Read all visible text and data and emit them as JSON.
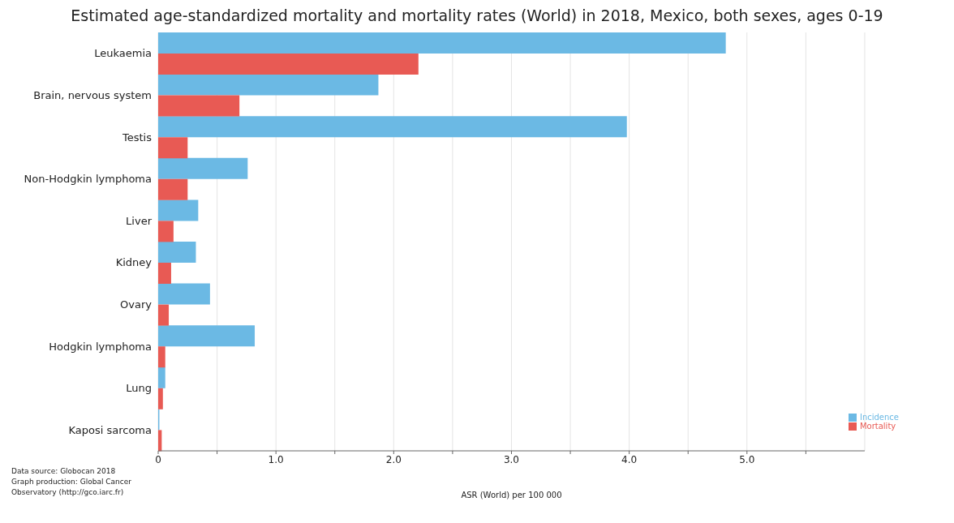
{
  "chart_data": {
    "type": "bar",
    "orientation": "horizontal",
    "title": "Estimated age-standardized mortality and mortality rates (World) in 2018, Mexico, both sexes, ages 0-19",
    "xlabel": "ASR (World) per 100 000",
    "categories": [
      "Leukaemia",
      "Brain, nervous system",
      "Testis",
      "Non-Hodgkin lymphoma",
      "Liver",
      "Kidney",
      "Ovary",
      "Hodgkin lymphoma",
      "Lung",
      "Kaposi sarcoma"
    ],
    "series": [
      {
        "name": "Incidence",
        "color": "#6bb9e4",
        "values": [
          4.82,
          1.87,
          3.98,
          0.76,
          0.34,
          0.32,
          0.44,
          0.82,
          0.06,
          0.01
        ]
      },
      {
        "name": "Mortality",
        "color": "#e85a54",
        "values": [
          2.21,
          0.69,
          0.25,
          0.25,
          0.13,
          0.11,
          0.09,
          0.06,
          0.04,
          0.03
        ]
      }
    ],
    "xlim": [
      0,
      6
    ],
    "xticks": [
      0,
      {
        "value": 0.5,
        "label": null
      },
      {
        "value": 1,
        "label": "1.0"
      },
      {
        "value": 1.5,
        "label": null
      },
      {
        "value": 2,
        "label": "2.0"
      },
      {
        "value": 2.5,
        "label": null
      },
      {
        "value": 3,
        "label": "3.0"
      },
      {
        "value": 3.5,
        "label": null
      },
      {
        "value": 4,
        "label": "4.0"
      },
      {
        "value": 4.5,
        "label": null
      },
      {
        "value": 5,
        "label": "5.0"
      },
      {
        "value": 5.5,
        "label": null
      }
    ],
    "grid": "x",
    "legend": "bottom right",
    "annotations": [
      "Data source: Globocan 2018",
      "Graph production: Global Cancer",
      "Observatory (http://gco.iarc.fr)"
    ]
  }
}
